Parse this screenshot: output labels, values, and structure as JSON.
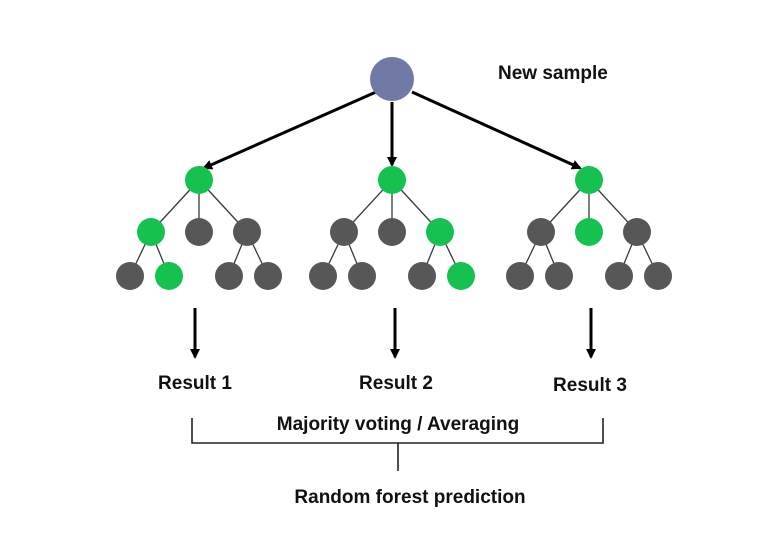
{
  "labels": {
    "new_sample": "New sample",
    "result_1": "Result 1",
    "result_2": "Result 2",
    "result_3": "Result 3",
    "majority_voting": "Majority voting / Averaging",
    "prediction": "Random forest prediction"
  },
  "colors": {
    "sample_node": "#717aa6",
    "active_node": "#16c24f",
    "inactive_node": "#575757"
  }
}
